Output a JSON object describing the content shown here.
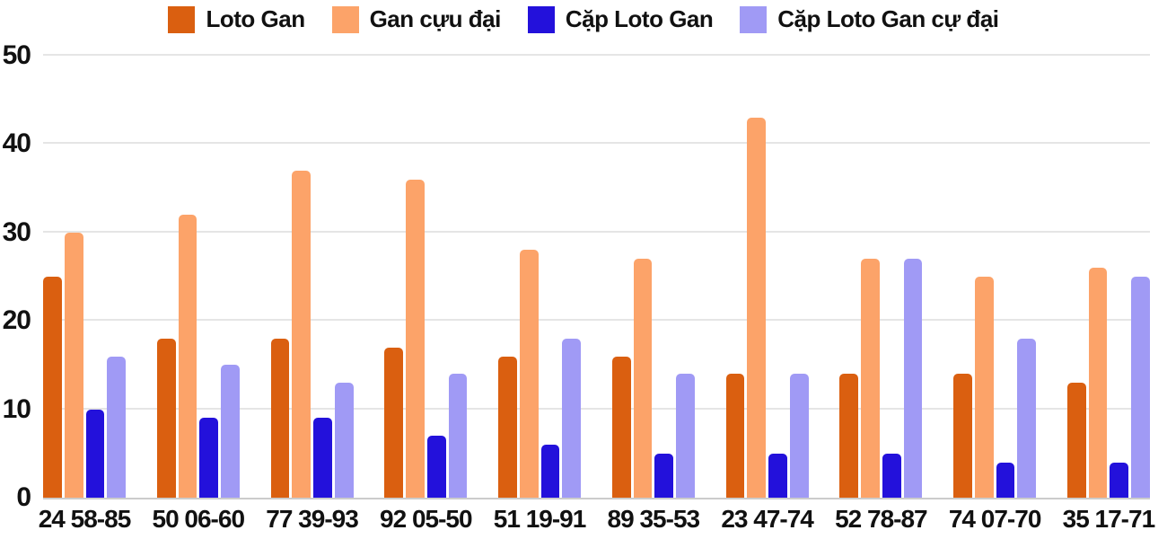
{
  "colors": {
    "text": "#111111",
    "grid": "#e5e5e5",
    "baseline": "#cccccc",
    "series_1": "#da5f10",
    "series_2": "#fca369",
    "series_3": "#2311db",
    "series_4": "#a09af5"
  },
  "chart_data": {
    "type": "bar",
    "title": "",
    "xlabel": "",
    "ylabel": "",
    "ylim": [
      0,
      50
    ],
    "yticks": [
      0,
      10,
      20,
      30,
      40,
      50
    ],
    "grid": true,
    "legend_position": "top",
    "categories": [
      "24 58-85",
      "50 06-60",
      "77 39-93",
      "92 05-50",
      "51 19-91",
      "89 35-53",
      "23 47-74",
      "52 78-87",
      "74 07-70",
      "35 17-71"
    ],
    "series": [
      {
        "name": "Loto Gan",
        "color": "#da5f10",
        "values": [
          25,
          18,
          18,
          17,
          16,
          16,
          14,
          14,
          14,
          13
        ]
      },
      {
        "name": "Gan cựu đại",
        "color": "#fca369",
        "values": [
          30,
          32,
          37,
          36,
          28,
          27,
          43,
          27,
          25,
          26
        ]
      },
      {
        "name": "Cặp Loto Gan",
        "color": "#2311db",
        "values": [
          10,
          9,
          9,
          7,
          6,
          5,
          5,
          5,
          4,
          4
        ]
      },
      {
        "name": "Cặp Loto Gan cự đại",
        "color": "#a09af5",
        "values": [
          16,
          15,
          13,
          14,
          18,
          14,
          14,
          27,
          18,
          25
        ]
      }
    ]
  }
}
